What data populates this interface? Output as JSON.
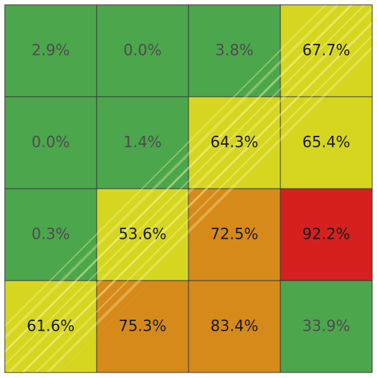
{
  "chart_data": {
    "type": "heatmap",
    "title": "",
    "xlabel": "",
    "ylabel": "",
    "rows": 4,
    "cols": 4,
    "values": [
      [
        2.9,
        0.0,
        3.8,
        67.7
      ],
      [
        0.0,
        1.4,
        64.3,
        65.4
      ],
      [
        0.3,
        53.6,
        72.5,
        92.2
      ],
      [
        61.6,
        75.3,
        83.4,
        33.9
      ]
    ],
    "labels": [
      [
        "2.9%",
        "0.0%",
        "3.8%",
        "67.7%"
      ],
      [
        "0.0%",
        "1.4%",
        "64.3%",
        "65.4%"
      ],
      [
        "0.3%",
        "53.6%",
        "72.5%",
        "92.2%"
      ],
      [
        "61.6%",
        "75.3%",
        "83.4%",
        "33.9%"
      ]
    ],
    "color_bands": [
      {
        "name": "green",
        "min": 0,
        "max": 50,
        "color": "#4ca64c",
        "text_color": "#4d4d4d"
      },
      {
        "name": "yellow",
        "min": 50,
        "max": 70,
        "color": "#d6d620",
        "text_color": "#1a1a1a"
      },
      {
        "name": "orange",
        "min": 70,
        "max": 90,
        "color": "#d68a1a",
        "text_color": "#1a1a1a"
      },
      {
        "name": "red",
        "min": 90,
        "max": 100,
        "color": "#d62020",
        "text_color": "#1a1a1a"
      }
    ],
    "grid": true,
    "legend": "none"
  }
}
